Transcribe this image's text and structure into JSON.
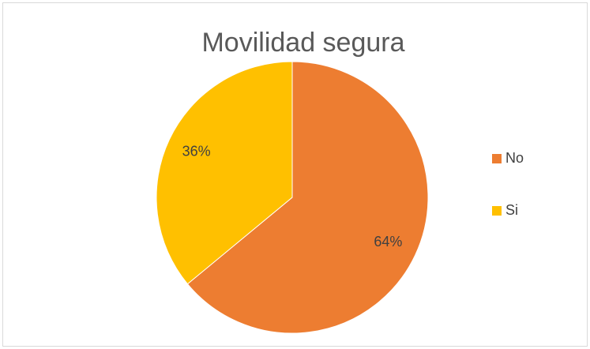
{
  "chart_data": {
    "type": "pie",
    "title": "Movilidad segura",
    "categories": [
      "No",
      "Si"
    ],
    "values": [
      64,
      36
    ],
    "value_labels": [
      "64%",
      "36%"
    ],
    "colors": [
      "#ED7D31",
      "#FFC000"
    ],
    "legend": "right"
  }
}
